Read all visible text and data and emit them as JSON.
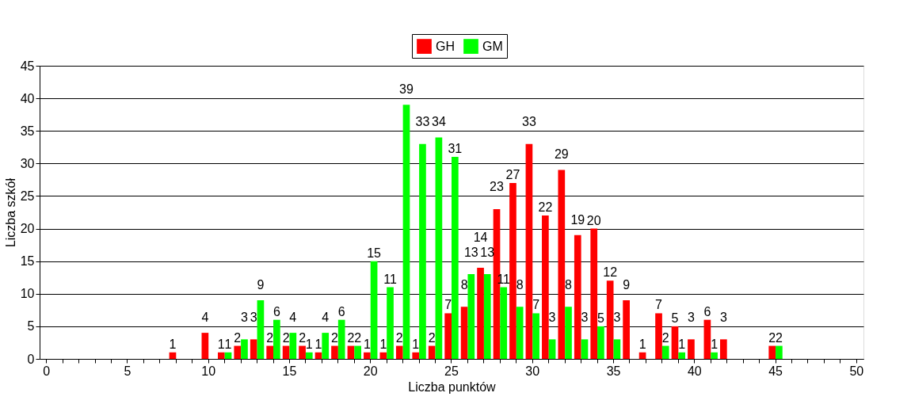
{
  "chart_data": {
    "type": "bar",
    "xlabel": "Liczba punktów",
    "ylabel": "Liczba szkół",
    "categories": [
      "0",
      null,
      null,
      null,
      null,
      "5",
      null,
      null,
      null,
      null,
      "10",
      null,
      null,
      null,
      null,
      "15",
      null,
      null,
      null,
      null,
      "20",
      null,
      null,
      null,
      null,
      "25",
      null,
      null,
      null,
      null,
      "30",
      null,
      null,
      null,
      null,
      "35",
      null,
      null,
      null,
      null,
      "40",
      null,
      null,
      null,
      null,
      "45",
      null,
      null,
      null,
      null,
      "50"
    ],
    "series": [
      {
        "name": "GH",
        "color": "#ff0000",
        "values": [
          null,
          null,
          null,
          null,
          null,
          null,
          null,
          null,
          1,
          null,
          4,
          1,
          2,
          3,
          2,
          2,
          2,
          1,
          2,
          2,
          1,
          1,
          2,
          1,
          2,
          7,
          8,
          14,
          23,
          27,
          33,
          22,
          29,
          19,
          20,
          12,
          9,
          1,
          7,
          5,
          3,
          6,
          3,
          null,
          null,
          2,
          null,
          null,
          null,
          null,
          null
        ]
      },
      {
        "name": "GM",
        "color": "#00ff00",
        "values": [
          null,
          null,
          null,
          null,
          null,
          null,
          null,
          null,
          null,
          null,
          null,
          1,
          3,
          9,
          6,
          4,
          1,
          4,
          6,
          2,
          15,
          11,
          39,
          33,
          34,
          31,
          13,
          13,
          11,
          8,
          7,
          3,
          8,
          3,
          5,
          3,
          null,
          null,
          2,
          1,
          null,
          1,
          null,
          null,
          null,
          2,
          null,
          null,
          null,
          null,
          null
        ]
      }
    ],
    "ylim": [
      0,
      45
    ],
    "yticks": [
      0,
      5,
      10,
      15,
      20,
      25,
      30,
      35,
      40,
      45
    ],
    "grid": "y",
    "legend": "top",
    "data_labels": true
  }
}
